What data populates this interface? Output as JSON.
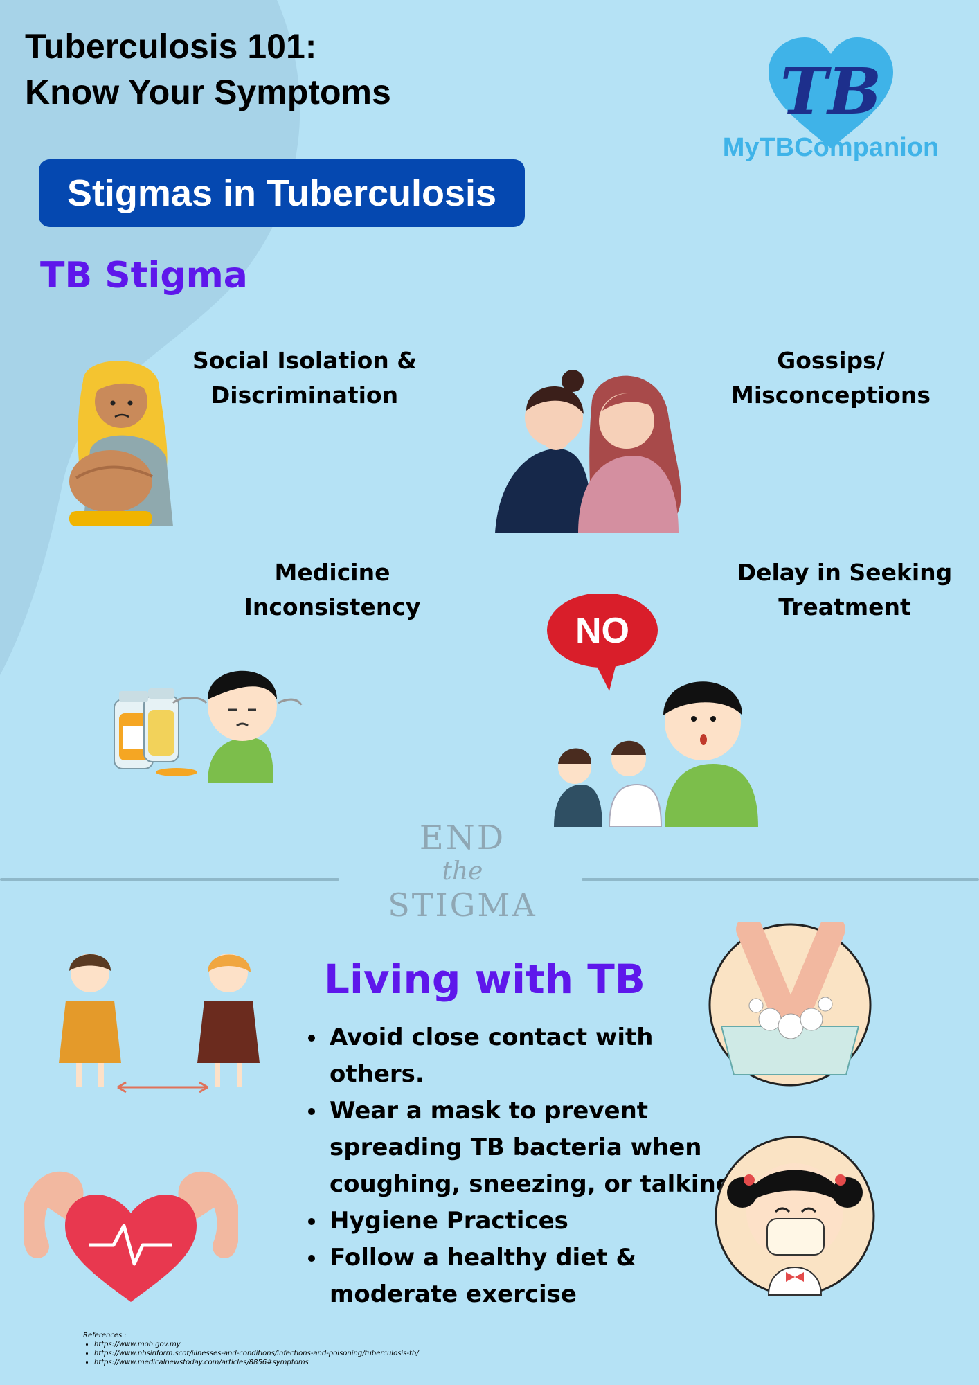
{
  "header": {
    "title_line1": "Tuberculosis 101:",
    "title_line2": "Know Your Symptoms",
    "logo_letters": "TB",
    "logo_name": "MyTBCompanion"
  },
  "banner": {
    "label": "Stigmas in Tuberculosis"
  },
  "stigma": {
    "heading": "TB Stigma",
    "items": [
      {
        "line1": "Social Isolation &",
        "line2": "Discrimination"
      },
      {
        "line1": "Gossips/",
        "line2": "Misconceptions"
      },
      {
        "line1": "Medicine",
        "line2": "Inconsistency"
      },
      {
        "line1": "Delay in Seeking",
        "line2": "Treatment"
      }
    ],
    "no_bubble": "NO"
  },
  "watermark": {
    "line1": "END",
    "line2": "the",
    "line3": "STIGMA"
  },
  "living": {
    "heading": "Living with TB",
    "items": [
      "Avoid close contact with others.",
      "Wear a mask to prevent spreading TB bacteria when coughing, sneezing, or talking.",
      "Hygiene Practices",
      "Follow a healthy diet & moderate exercise"
    ]
  },
  "references": {
    "label": "References :",
    "items": [
      "https://www.moh.gov.my",
      "https://www.nhsinform.scot/illnesses-and-conditions/infections-and-poisoning/tuberculosis-tb/",
      "https://www.medicalnewstoday.com/articles/8856#symptoms"
    ]
  },
  "colors": {
    "background": "#b5e2f5",
    "blob": "#a7d3e8",
    "banner": "#0548b0",
    "accent_purple": "#5e17eb",
    "logo_blue": "#3fb3e8",
    "logo_dark": "#1d2f8c",
    "no_red": "#d91e2a"
  }
}
